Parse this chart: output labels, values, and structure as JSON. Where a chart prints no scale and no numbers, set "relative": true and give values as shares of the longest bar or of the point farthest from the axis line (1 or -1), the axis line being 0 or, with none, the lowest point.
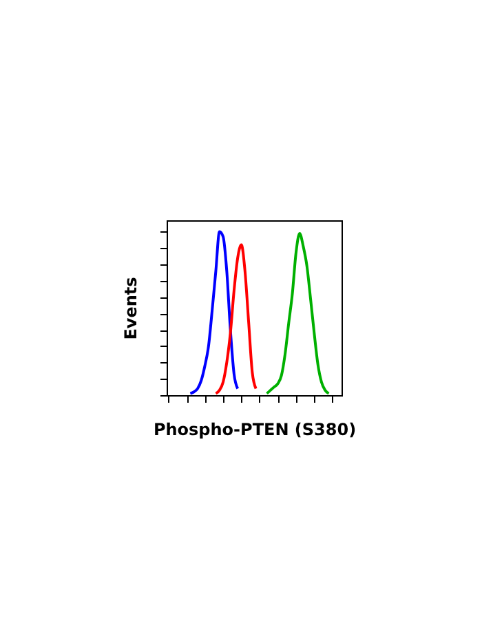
{
  "chart_data": {
    "type": "line",
    "relative": true,
    "xlabel": "Phospho-PTEN (S380)",
    "ylabel": "Events",
    "tick_labels": false,
    "legend": false,
    "grid": false,
    "categories": [
      null,
      null,
      null,
      null,
      null,
      null,
      null,
      null,
      null,
      null,
      null,
      null,
      null,
      null,
      null,
      null,
      null,
      null,
      null,
      null,
      null,
      null,
      null,
      null,
      null,
      null,
      null,
      null,
      null,
      null,
      null,
      null,
      null,
      null,
      null,
      null,
      null,
      null,
      null,
      null,
      null,
      null,
      null,
      null,
      null,
      null,
      null,
      null
    ],
    "series": [
      {
        "color": "#0000ff",
        "values": [
          null,
          null,
          null,
          null,
          null,
          null,
          0.01,
          0.02,
          0.04,
          0.09,
          0.18,
          0.3,
          0.52,
          0.76,
          1,
          0.97,
          0.76,
          0.4,
          0.13,
          0.04,
          null,
          null,
          null,
          null,
          null,
          null,
          null,
          null,
          null,
          null,
          null,
          null,
          null,
          null,
          null,
          null,
          null,
          null,
          null,
          null,
          null,
          null,
          null,
          null,
          null,
          null,
          null,
          null
        ]
      },
      {
        "color": "#ff0000",
        "values": [
          null,
          null,
          null,
          null,
          null,
          null,
          null,
          null,
          null,
          null,
          null,
          null,
          null,
          0.01,
          0.03,
          0.08,
          0.2,
          0.38,
          0.64,
          0.84,
          0.92,
          0.76,
          0.45,
          0.14,
          0.04,
          null,
          null,
          null,
          null,
          null,
          null,
          null,
          null,
          null,
          null,
          null,
          null,
          null,
          null,
          null,
          null,
          null,
          null,
          null,
          null,
          null,
          null,
          null
        ]
      },
      {
        "color": "#00b000",
        "values": [
          null,
          null,
          null,
          null,
          null,
          null,
          null,
          null,
          null,
          null,
          null,
          null,
          null,
          null,
          null,
          null,
          null,
          null,
          null,
          null,
          null,
          null,
          null,
          null,
          null,
          null,
          null,
          0.01,
          0.03,
          0.05,
          0.07,
          0.12,
          0.25,
          0.44,
          0.62,
          0.87,
          0.99,
          0.91,
          0.79,
          0.59,
          0.38,
          0.19,
          0.08,
          0.03,
          0.01,
          null,
          null,
          null
        ]
      }
    ]
  }
}
